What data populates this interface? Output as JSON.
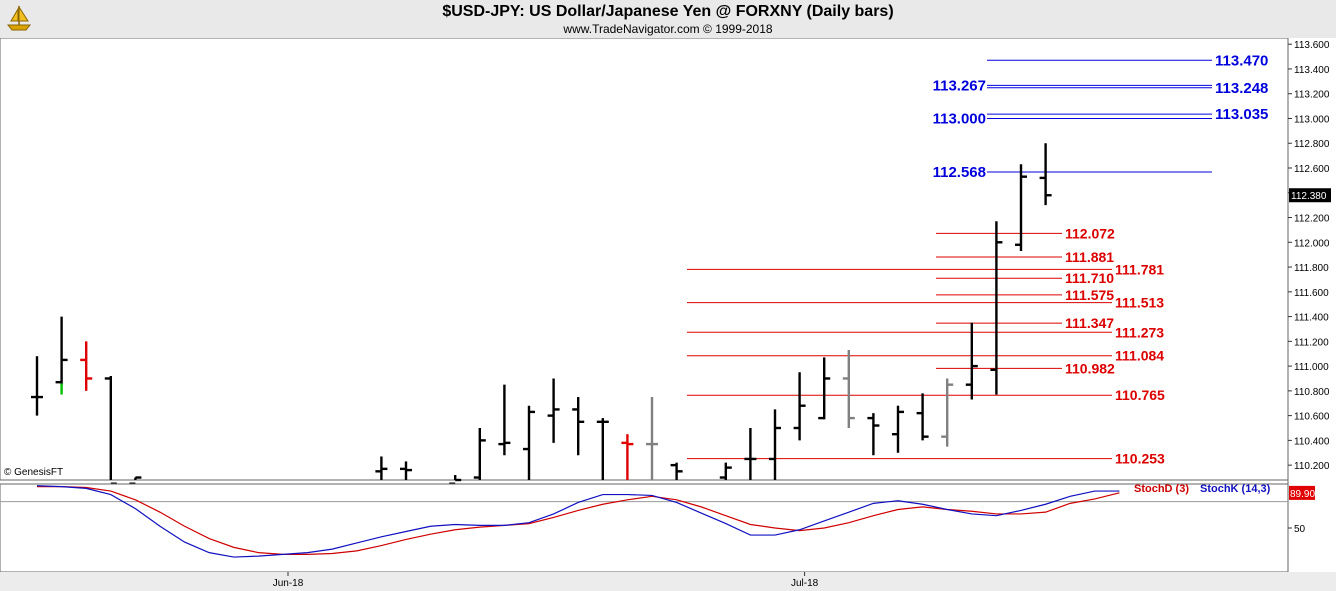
{
  "header": {
    "title": "$USD-JPY:  US Dollar/Japanese Yen @ FORXNY  (Daily bars)",
    "subtitle": "www.TradeNavigator.com © 1999-2018"
  },
  "watermark": "© GenesisFT",
  "colors": {
    "up_bar": "#000000",
    "down_bar": "#e00000",
    "neutral_bar": "#808080",
    "flat_bar": "#00c000",
    "blue_levels": "#0000dd",
    "red_levels": "#dd0000",
    "stoch_d": "#d00000",
    "stoch_k": "#1010c0"
  },
  "chart_data": [
    {
      "type": "ohlc",
      "title": "$USD-JPY:  US Dollar/Japanese Yen @ FORXNY  (Daily bars)",
      "ylim": [
        110.08,
        113.65
      ],
      "y_ticks": [
        "110.200",
        "110.400",
        "110.600",
        "110.800",
        "111.000",
        "111.200",
        "111.400",
        "111.600",
        "111.800",
        "112.000",
        "112.200",
        "112.400",
        "112.600",
        "112.800",
        "113.000",
        "113.200",
        "113.400",
        "113.600"
      ],
      "last_price": "112.380",
      "bars": [
        {
          "h": 111.08,
          "l": 110.6,
          "o": 110.75,
          "c": 110.75,
          "color": "black"
        },
        {
          "h": 111.4,
          "l": 110.85,
          "o": 110.87,
          "c": 111.05,
          "color": "black"
        },
        {
          "h": 111.2,
          "l": 110.8,
          "o": 111.05,
          "c": 110.9,
          "color": "red"
        },
        {
          "h": 110.92,
          "l": 110.05,
          "o": 110.9,
          "c": 110.05,
          "color": "black"
        },
        {
          "h": 110.1,
          "l": 110.05,
          "o": 110.05,
          "c": 110.1,
          "color": "black"
        },
        {
          "h": null,
          "l": null,
          "o": null,
          "c": null,
          "color": "black"
        },
        {
          "h": null,
          "l": null,
          "o": null,
          "c": null,
          "color": "black"
        },
        {
          "h": null,
          "l": null,
          "o": null,
          "c": null,
          "color": "black"
        },
        {
          "h": null,
          "l": null,
          "o": null,
          "c": null,
          "color": "black"
        },
        {
          "h": null,
          "l": null,
          "o": null,
          "c": null,
          "color": "black"
        },
        {
          "h": null,
          "l": null,
          "o": null,
          "c": null,
          "color": "black"
        },
        {
          "h": null,
          "l": null,
          "o": null,
          "c": null,
          "color": "black"
        },
        {
          "h": null,
          "l": null,
          "o": null,
          "c": null,
          "color": "black"
        },
        {
          "h": null,
          "l": null,
          "o": null,
          "c": null,
          "color": "black"
        },
        {
          "h": 110.27,
          "l": 110.05,
          "o": 110.15,
          "c": 110.17,
          "color": "black"
        },
        {
          "h": 110.23,
          "l": 110.05,
          "o": 110.17,
          "c": 110.16,
          "color": "black"
        },
        {
          "h": null,
          "l": null,
          "o": null,
          "c": null,
          "color": "black"
        },
        {
          "h": 110.12,
          "l": 110.05,
          "o": 110.05,
          "c": 110.08,
          "color": "black"
        },
        {
          "h": 110.5,
          "l": 110.05,
          "o": 110.1,
          "c": 110.4,
          "color": "black"
        },
        {
          "h": 110.85,
          "l": 110.28,
          "o": 110.37,
          "c": 110.38,
          "color": "black"
        },
        {
          "h": 110.68,
          "l": 110.05,
          "o": 110.33,
          "c": 110.63,
          "color": "black"
        },
        {
          "h": 110.9,
          "l": 110.38,
          "o": 110.6,
          "c": 110.65,
          "color": "black"
        },
        {
          "h": 110.75,
          "l": 110.28,
          "o": 110.65,
          "c": 110.55,
          "color": "black"
        },
        {
          "h": 110.58,
          "l": 110.05,
          "o": 110.55,
          "c": 110.55,
          "color": "black"
        },
        {
          "h": 110.45,
          "l": 110.05,
          "o": 110.38,
          "c": 110.37,
          "color": "red"
        },
        {
          "h": 110.75,
          "l": 110.05,
          "o": 110.37,
          "c": 110.37,
          "color": "gray"
        },
        {
          "h": 110.22,
          "l": 110.05,
          "o": 110.2,
          "c": 110.15,
          "color": "black"
        },
        {
          "h": null,
          "l": null,
          "o": null,
          "c": null,
          "color": "black"
        },
        {
          "h": 110.22,
          "l": 110.05,
          "o": 110.1,
          "c": 110.18,
          "color": "black"
        },
        {
          "h": 110.5,
          "l": 110.05,
          "o": 110.25,
          "c": 110.25,
          "color": "black"
        },
        {
          "h": 110.65,
          "l": 110.05,
          "o": 110.25,
          "c": 110.5,
          "color": "black"
        },
        {
          "h": 110.95,
          "l": 110.4,
          "o": 110.5,
          "c": 110.68,
          "color": "black"
        },
        {
          "h": 111.07,
          "l": 110.57,
          "o": 110.58,
          "c": 110.9,
          "color": "black"
        },
        {
          "h": 111.13,
          "l": 110.5,
          "o": 110.9,
          "c": 110.58,
          "color": "gray"
        },
        {
          "h": 110.62,
          "l": 110.28,
          "o": 110.58,
          "c": 110.52,
          "color": "black"
        },
        {
          "h": 110.68,
          "l": 110.3,
          "o": 110.45,
          "c": 110.63,
          "color": "black"
        },
        {
          "h": 110.78,
          "l": 110.4,
          "o": 110.62,
          "c": 110.43,
          "color": "black"
        },
        {
          "h": 110.9,
          "l": 110.35,
          "o": 110.43,
          "c": 110.85,
          "color": "gray"
        },
        {
          "h": 111.35,
          "l": 110.73,
          "o": 110.85,
          "c": 111.0,
          "color": "black"
        },
        {
          "h": 112.17,
          "l": 110.77,
          "o": 110.97,
          "c": 112.0,
          "color": "black"
        },
        {
          "h": 112.63,
          "l": 111.93,
          "o": 111.98,
          "c": 112.53,
          "color": "black"
        },
        {
          "h": 112.8,
          "l": 112.3,
          "o": 112.52,
          "c": 112.38,
          "color": "black"
        }
      ],
      "levels": [
        {
          "value": 113.47,
          "label": "113.470",
          "color": "blue",
          "label_side": "right"
        },
        {
          "value": 113.267,
          "label": "113.267",
          "color": "blue",
          "label_side": "left"
        },
        {
          "value": 113.248,
          "label": "113.248",
          "color": "blue",
          "label_side": "right"
        },
        {
          "value": 113.035,
          "label": "113.035",
          "color": "blue",
          "label_side": "right"
        },
        {
          "value": 113.0,
          "label": "113.000",
          "color": "blue",
          "label_side": "left"
        },
        {
          "value": 112.568,
          "label": "112.568",
          "color": "blue",
          "label_side": "left"
        },
        {
          "value": 112.072,
          "label": "112.072",
          "color": "red",
          "label_side": "inner"
        },
        {
          "value": 111.881,
          "label": "111.881",
          "color": "red",
          "label_side": "inner"
        },
        {
          "value": 111.781,
          "label": "111.781",
          "color": "red",
          "label_side": "outer"
        },
        {
          "value": 111.71,
          "label": "111.710",
          "color": "red",
          "label_side": "inner"
        },
        {
          "value": 111.575,
          "label": "111.575",
          "color": "red",
          "label_side": "inner"
        },
        {
          "value": 111.513,
          "label": "111.513",
          "color": "red",
          "label_side": "outer"
        },
        {
          "value": 111.347,
          "label": "111.347",
          "color": "red",
          "label_side": "inner"
        },
        {
          "value": 111.273,
          "label": "111.273",
          "color": "red",
          "label_side": "outer"
        },
        {
          "value": 111.084,
          "label": "111.084",
          "color": "red",
          "label_side": "outer"
        },
        {
          "value": 110.982,
          "label": "110.982",
          "color": "red",
          "label_side": "inner"
        },
        {
          "value": 110.765,
          "label": "110.765",
          "color": "red",
          "label_side": "outer"
        },
        {
          "value": 110.253,
          "label": "110.253",
          "color": "red",
          "label_side": "outer"
        }
      ]
    },
    {
      "type": "line",
      "title": "",
      "ylim": [
        0,
        100
      ],
      "y_ticks": [
        "50"
      ],
      "last_value": "89.90",
      "x_labels": [
        {
          "label": "Jun-18",
          "bar_index": 10
        },
        {
          "label": "Jul-18",
          "bar_index": 31
        }
      ],
      "series": [
        {
          "name": "StochD (3)",
          "color": "red",
          "values": [
            97,
            97,
            96,
            92,
            82,
            68,
            52,
            38,
            28,
            22,
            20,
            20,
            21,
            24,
            30,
            37,
            43,
            48,
            51,
            53,
            55,
            62,
            70,
            77,
            82,
            86,
            82,
            74,
            64,
            54,
            50,
            47,
            50,
            56,
            64,
            71,
            74,
            71,
            69,
            66,
            66,
            68,
            78,
            83,
            90
          ]
        },
        {
          "name": "StochK (14,3)",
          "color": "blue",
          "values": [
            98,
            97,
            95,
            88,
            72,
            52,
            34,
            22,
            17,
            18,
            20,
            22,
            26,
            33,
            40,
            46,
            52,
            54,
            53,
            53,
            56,
            66,
            79,
            88,
            88,
            87,
            79,
            67,
            55,
            42,
            42,
            48,
            58,
            68,
            78,
            81,
            77,
            71,
            66,
            64,
            70,
            77,
            86,
            92,
            92
          ]
        }
      ]
    }
  ]
}
